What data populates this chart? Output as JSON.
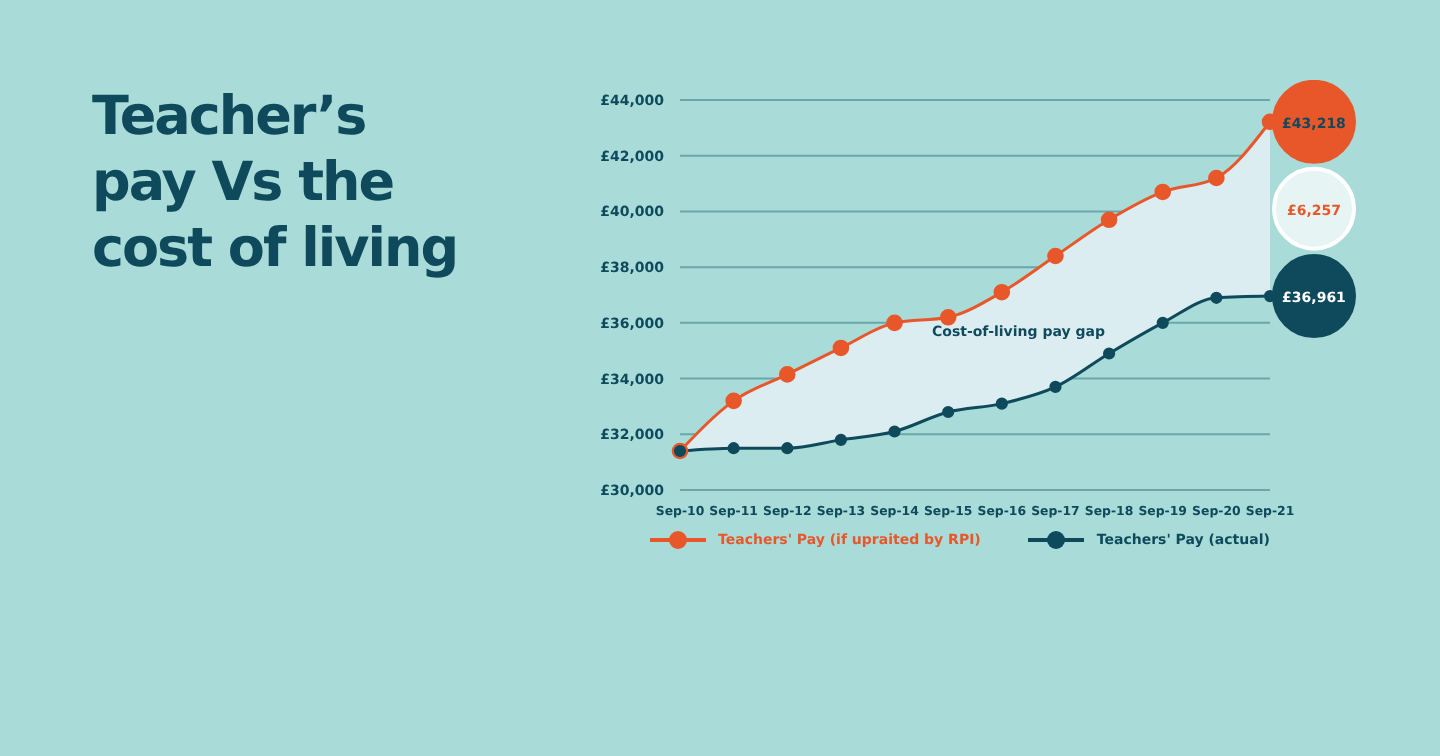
{
  "chart_data": {
    "type": "line",
    "title": "Teacher’s pay Vs the cost of living",
    "categories": [
      "Sep-10",
      "Sep-11",
      "Sep-12",
      "Sep-13",
      "Sep-14",
      "Sep-15",
      "Sep-16",
      "Sep-17",
      "Sep-18",
      "Sep-19",
      "Sep-20",
      "Sep-21"
    ],
    "series": [
      {
        "name": "Teachers' Pay (if upraited by RPI)",
        "color": "#e8572a",
        "values": [
          31400,
          33200,
          34150,
          35100,
          36000,
          36200,
          37100,
          38400,
          39700,
          40700,
          41200,
          43218
        ],
        "lower": [
          31400,
          31500,
          31500,
          31800,
          32100,
          32800,
          33100,
          33700,
          34900,
          36000,
          36900,
          36961
        ],
        "upper": [
          31400,
          33200,
          34150,
          35100,
          36000,
          36200,
          37100,
          38400,
          39700,
          40700,
          41200,
          43218
        ]
      },
      {
        "name": "Teachers' Pay (actual)",
        "color": "#0f4a5c",
        "values": [
          31400,
          31500,
          31500,
          31800,
          32100,
          32800,
          33100,
          33700,
          34900,
          36000,
          36900,
          36961
        ]
      }
    ],
    "ylim": [
      30000,
      44000
    ],
    "yticks": [
      {
        "value": 30000,
        "label": "£30,000"
      },
      {
        "value": 32000,
        "label": "£32,000"
      },
      {
        "value": 34000,
        "label": "£34,000"
      },
      {
        "value": 36000,
        "label": "£36,000"
      },
      {
        "value": 38000,
        "label": "£38,000"
      },
      {
        "value": 40000,
        "label": "£40,000"
      },
      {
        "value": 42000,
        "label": "£42,000"
      },
      {
        "value": 44000,
        "label": "£44,000"
      }
    ],
    "grid": "y",
    "legend": "bottom left",
    "marker": "circle",
    "line_style": "solid",
    "annotations": [
      {
        "text": "£43,218",
        "x": "Sep-21",
        "y": 43218
      },
      {
        "text": "£6,257",
        "x": "Sep-21",
        "y": 40100
      },
      {
        "text": "£36,961",
        "x": "Sep-21",
        "y": 36961
      },
      "Cost-of-living pay gap"
    ]
  }
}
